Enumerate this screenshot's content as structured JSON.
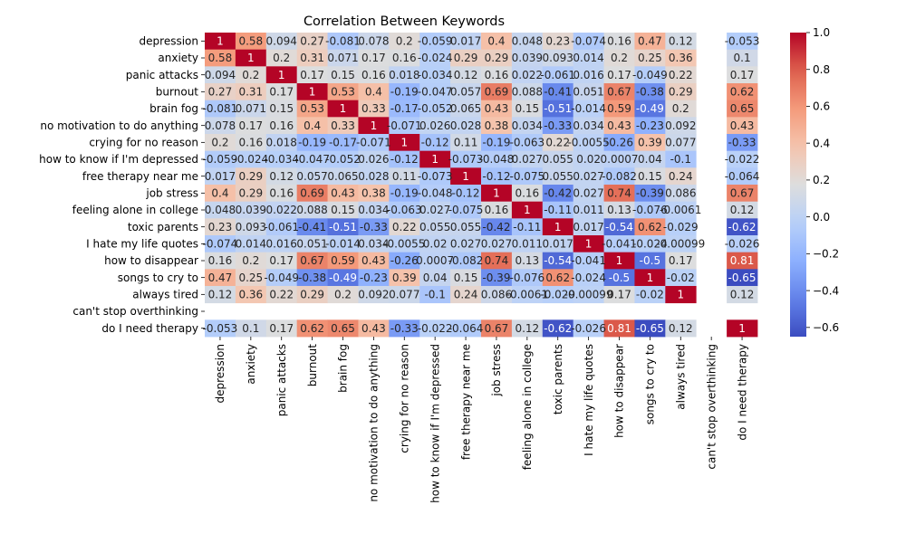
{
  "chart_data": {
    "type": "heatmap",
    "title": "Correlation Between Keywords",
    "xlabel": "",
    "ylabel": "",
    "labels": [
      "depression",
      "anxiety",
      "panic attacks",
      "burnout",
      "brain fog",
      "no motivation to do anything",
      "crying for no reason",
      "how to know if I'm depressed",
      "free therapy near me",
      "job stress",
      "feeling alone in college",
      "toxic parents",
      "I hate my life quotes",
      "how to disappear",
      "songs to cry to",
      "always tired",
      "can't stop overthinking",
      "do I need therapy"
    ],
    "values": [
      [
        1,
        0.58,
        0.094,
        0.27,
        -0.081,
        0.078,
        0.2,
        -0.059,
        0.017,
        0.4,
        0.048,
        0.23,
        -0.074,
        0.16,
        0.47,
        0.12,
        null,
        -0.053
      ],
      [
        0.58,
        1,
        0.2,
        0.31,
        0.071,
        0.17,
        0.16,
        -0.024,
        0.29,
        0.29,
        0.039,
        0.093,
        0.014,
        0.2,
        0.25,
        0.36,
        null,
        0.1
      ],
      [
        0.094,
        0.2,
        1,
        0.17,
        0.15,
        0.16,
        0.018,
        -0.034,
        0.12,
        0.16,
        0.022,
        -0.061,
        0.016,
        0.17,
        -0.049,
        0.22,
        null,
        0.17
      ],
      [
        0.27,
        0.31,
        0.17,
        1,
        0.53,
        0.4,
        -0.19,
        -0.047,
        0.057,
        0.69,
        0.088,
        -0.41,
        0.051,
        0.67,
        -0.38,
        0.29,
        null,
        0.62
      ],
      [
        -0.081,
        0.071,
        0.15,
        0.53,
        1,
        0.33,
        -0.17,
        -0.052,
        0.065,
        0.43,
        0.15,
        -0.51,
        -0.014,
        0.59,
        -0.49,
        0.2,
        null,
        0.65
      ],
      [
        0.078,
        0.17,
        0.16,
        0.4,
        0.33,
        1,
        -0.071,
        0.026,
        0.028,
        0.38,
        0.034,
        -0.33,
        0.034,
        0.43,
        -0.23,
        0.092,
        null,
        0.43
      ],
      [
        0.2,
        0.16,
        0.018,
        -0.19,
        -0.17,
        -0.071,
        1,
        -0.12,
        0.11,
        -0.19,
        -0.063,
        0.22,
        -0.0055,
        -0.26,
        0.39,
        0.077,
        null,
        -0.33
      ],
      [
        -0.059,
        -0.024,
        -0.034,
        -0.047,
        -0.052,
        0.026,
        -0.12,
        1,
        -0.073,
        -0.048,
        0.027,
        0.055,
        0.02,
        0.0007,
        0.04,
        -0.1,
        null,
        -0.022
      ],
      [
        0.017,
        0.29,
        0.12,
        0.057,
        0.065,
        0.028,
        0.11,
        -0.073,
        1,
        -0.12,
        -0.075,
        0.055,
        0.027,
        -0.082,
        0.15,
        0.24,
        null,
        -0.064
      ],
      [
        0.4,
        0.29,
        0.16,
        0.69,
        0.43,
        0.38,
        -0.19,
        -0.048,
        -0.12,
        1,
        0.16,
        -0.42,
        0.027,
        0.74,
        -0.39,
        0.086,
        null,
        0.67
      ],
      [
        0.048,
        0.039,
        0.022,
        0.088,
        0.15,
        0.034,
        -0.063,
        0.027,
        -0.075,
        0.16,
        1,
        -0.11,
        0.011,
        0.13,
        -0.076,
        -0.0061,
        null,
        0.12
      ],
      [
        0.23,
        0.093,
        -0.061,
        -0.41,
        -0.51,
        -0.33,
        0.22,
        0.055,
        0.055,
        -0.42,
        -0.11,
        1,
        0.017,
        -0.54,
        0.62,
        -0.029,
        null,
        -0.62
      ],
      [
        -0.074,
        0.014,
        0.016,
        0.051,
        -0.014,
        0.034,
        -0.0055,
        0.02,
        0.027,
        0.027,
        0.011,
        0.017,
        1,
        -0.041,
        -0.024,
        -0.00099,
        null,
        -0.026
      ],
      [
        0.16,
        0.2,
        0.17,
        0.67,
        0.59,
        0.43,
        -0.26,
        0.0007,
        -0.082,
        0.74,
        0.13,
        -0.54,
        -0.041,
        1,
        -0.5,
        0.17,
        null,
        0.81
      ],
      [
        0.47,
        0.25,
        -0.049,
        -0.38,
        -0.49,
        -0.23,
        0.39,
        0.04,
        0.15,
        -0.39,
        -0.076,
        0.62,
        -0.024,
        -0.5,
        1,
        -0.02,
        null,
        -0.65
      ],
      [
        0.12,
        0.36,
        0.22,
        0.29,
        0.2,
        0.092,
        0.077,
        -0.1,
        0.24,
        0.086,
        -0.0061,
        -0.029,
        -0.00099,
        0.17,
        -0.02,
        1,
        null,
        0.12
      ],
      [
        null,
        null,
        null,
        null,
        null,
        null,
        null,
        null,
        null,
        null,
        null,
        null,
        null,
        null,
        null,
        null,
        null,
        null
      ],
      [
        -0.053,
        0.1,
        0.17,
        0.62,
        0.65,
        0.43,
        -0.33,
        -0.022,
        -0.064,
        0.67,
        0.12,
        -0.62,
        -0.026,
        0.81,
        -0.65,
        0.12,
        null,
        1
      ]
    ],
    "value_labels": [
      [
        "1",
        "0.58",
        "0.094",
        "0.27",
        "-0.081",
        "0.078",
        "0.2",
        "-0.059",
        "0.017",
        "0.4",
        "0.048",
        "0.23",
        "-0.074",
        "0.16",
        "0.47",
        "0.12",
        "",
        "-0.053"
      ],
      [
        "0.58",
        "1",
        "0.2",
        "0.31",
        "0.071",
        "0.17",
        "0.16",
        "-0.024",
        "0.29",
        "0.29",
        "0.039",
        "0.093",
        "0.014",
        "0.2",
        "0.25",
        "0.36",
        "",
        "0.1"
      ],
      [
        "0.094",
        "0.2",
        "1",
        "0.17",
        "0.15",
        "0.16",
        "0.018",
        "-0.034",
        "0.12",
        "0.16",
        "0.022",
        "-0.061",
        "0.016",
        "0.17",
        "-0.049",
        "0.22",
        "",
        "0.17"
      ],
      [
        "0.27",
        "0.31",
        "0.17",
        "1",
        "0.53",
        "0.4",
        "-0.19",
        "-0.047",
        "0.057",
        "0.69",
        "0.088",
        "-0.41",
        "0.051",
        "0.67",
        "-0.38",
        "0.29",
        "",
        "0.62"
      ],
      [
        "-0.081",
        "0.071",
        "0.15",
        "0.53",
        "1",
        "0.33",
        "-0.17",
        "-0.052",
        "0.065",
        "0.43",
        "0.15",
        "-0.51",
        "-0.014",
        "0.59",
        "-0.49",
        "0.2",
        "",
        "0.65"
      ],
      [
        "0.078",
        "0.17",
        "0.16",
        "0.4",
        "0.33",
        "1",
        "-0.071",
        "0.026",
        "0.028",
        "0.38",
        "0.034",
        "-0.33",
        "0.034",
        "0.43",
        "-0.23",
        "0.092",
        "",
        "0.43"
      ],
      [
        "0.2",
        "0.16",
        "0.018",
        "-0.19",
        "-0.17",
        "-0.071",
        "1",
        "-0.12",
        "0.11",
        "-0.19",
        "-0.063",
        "0.22",
        "-0.0055",
        "-0.26",
        "0.39",
        "0.077",
        "",
        "-0.33"
      ],
      [
        "-0.059",
        "-0.024",
        "-0.034",
        "-0.047",
        "-0.052",
        "0.026",
        "-0.12",
        "1",
        "-0.073",
        "-0.048",
        "0.027",
        "0.055",
        "0.02",
        "0.0007",
        "0.04",
        "-0.1",
        "",
        "-0.022"
      ],
      [
        "0.017",
        "0.29",
        "0.12",
        "0.057",
        "0.065",
        "0.028",
        "0.11",
        "-0.073",
        "1",
        "-0.12",
        "-0.075",
        "0.055",
        "0.027",
        "-0.082",
        "0.15",
        "0.24",
        "",
        "-0.064"
      ],
      [
        "0.4",
        "0.29",
        "0.16",
        "0.69",
        "0.43",
        "0.38",
        "-0.19",
        "-0.048",
        "-0.12",
        "1",
        "0.16",
        "-0.42",
        "0.027",
        "0.74",
        "-0.39",
        "0.086",
        "",
        "0.67"
      ],
      [
        "0.048",
        "0.039",
        "0.022",
        "0.088",
        "0.15",
        "0.034",
        "-0.063",
        "0.027",
        "-0.075",
        "0.16",
        "1",
        "-0.11",
        "0.011",
        "0.13",
        "-0.076",
        "-0.0061",
        "",
        "0.12"
      ],
      [
        "0.23",
        "0.093",
        "-0.061",
        "-0.41",
        "-0.51",
        "-0.33",
        "0.22",
        "0.055",
        "0.055",
        "-0.42",
        "-0.11",
        "1",
        "0.017",
        "-0.54",
        "0.62",
        "-0.029",
        "",
        "-0.62"
      ],
      [
        "-0.074",
        "0.014",
        "0.016",
        "0.051",
        "-0.014",
        "0.034",
        "-0.0055",
        "0.02",
        "0.027",
        "0.027",
        "0.011",
        "0.017",
        "1",
        "-0.041",
        "-0.024",
        "-0.00099",
        "",
        "-0.026"
      ],
      [
        "0.16",
        "0.2",
        "0.17",
        "0.67",
        "0.59",
        "0.43",
        "-0.26",
        "0.0007",
        "-0.082",
        "0.74",
        "0.13",
        "-0.54",
        "-0.041",
        "1",
        "-0.5",
        "0.17",
        "",
        "0.81"
      ],
      [
        "0.47",
        "0.25",
        "-0.049",
        "-0.38",
        "-0.49",
        "-0.23",
        "0.39",
        "0.04",
        "0.15",
        "-0.39",
        "-0.076",
        "0.62",
        "-0.024",
        "-0.5",
        "1",
        "-0.02",
        "",
        "-0.65"
      ],
      [
        "0.12",
        "0.36",
        "0.22",
        "0.29",
        "0.2",
        "0.092",
        "0.077",
        "-0.1",
        "0.24",
        "0.086",
        "-0.0061",
        "-0.029",
        "-0.00099",
        "0.17",
        "-0.02",
        "1",
        "",
        "0.12"
      ],
      [
        "",
        "",
        "",
        "",
        "",
        "",
        "",
        "",
        "",
        "",
        "",
        "",
        "",
        "",
        "",
        "",
        "",
        ""
      ],
      [
        "-0.053",
        "0.1",
        "0.17",
        "0.62",
        "0.65",
        "0.43",
        "-0.33",
        "-0.022",
        "-0.064",
        "0.67",
        "0.12",
        "-0.62",
        "-0.026",
        "0.81",
        "-0.65",
        "0.12",
        "",
        "1"
      ]
    ],
    "colormap": "coolwarm",
    "colorbar": {
      "range": [
        -0.65,
        1.0
      ],
      "ticks": [
        -0.6,
        -0.4,
        -0.2,
        0.0,
        0.2,
        0.4,
        0.6,
        0.8,
        1.0
      ],
      "tick_labels": [
        "−0.6",
        "−0.4",
        "−0.2",
        "0.0",
        "0.2",
        "0.4",
        "0.6",
        "0.8",
        "1.0"
      ],
      "placement": "right"
    },
    "grid": false,
    "legend": "none"
  }
}
